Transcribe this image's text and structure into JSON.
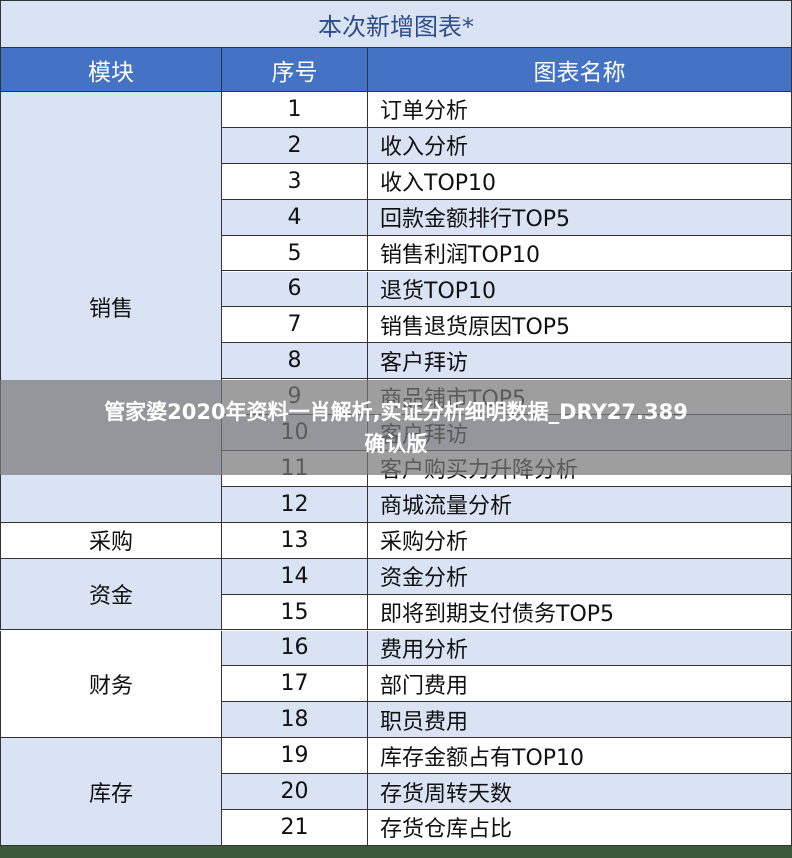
{
  "title": "本次新增图表*",
  "headers": [
    "模块",
    "序号",
    "图表名称"
  ],
  "groups": [
    {
      "module": "销售",
      "rows": [
        [
          1,
          "订单分析"
        ],
        [
          2,
          "收入分析"
        ],
        [
          3,
          "收入TOP10"
        ],
        [
          4,
          "回款金额排行TOP5"
        ],
        [
          5,
          "销售利润TOP10"
        ],
        [
          6,
          "退货TOP10"
        ],
        [
          7,
          "销售退货原因TOP5"
        ],
        [
          8,
          "客户拜访"
        ],
        [
          9,
          "商品铺市TOP5"
        ],
        [
          10,
          "客户拜访"
        ],
        [
          11,
          "客户购买力升降分析"
        ],
        [
          12,
          "商城流量分析"
        ]
      ]
    },
    {
      "module": "采购",
      "rows": [
        [
          13,
          "采购分析"
        ]
      ]
    },
    {
      "module": "资金",
      "rows": [
        [
          14,
          "资金分析"
        ],
        [
          15,
          "即将到期支付债务TOP5"
        ]
      ]
    },
    {
      "module": "财务",
      "rows": [
        [
          16,
          "费用分析"
        ],
        [
          17,
          "部门费用"
        ],
        [
          18,
          "职员费用"
        ]
      ]
    },
    {
      "module": "库存",
      "rows": [
        [
          19,
          "库存金额占有TOP10"
        ],
        [
          20,
          "存货周转天数"
        ],
        [
          21,
          "存货仓库占比"
        ]
      ]
    }
  ],
  "overlay": [
    "管家婆2020年资料一肖解析,实证分析细明数据_DRY27.389",
    "确认版"
  ]
}
